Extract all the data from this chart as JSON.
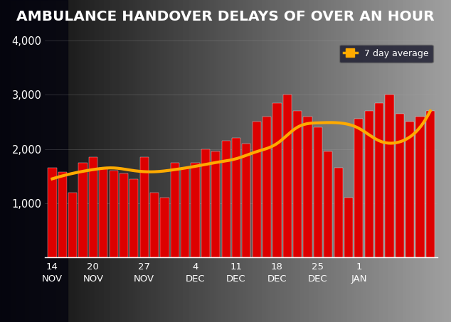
{
  "title": "AMBULANCE HANDOVER DELAYS OF OVER AN HOUR",
  "title_bg_color": "#cc0000",
  "title_text_color": "#ffffff",
  "bar_color": "#dd0000",
  "line_color": "#ffaa00",
  "line_label": "7 day average",
  "ylim": [
    0,
    4000
  ],
  "yticks": [
    1000,
    2000,
    3000,
    4000
  ],
  "xlabel_groups": [
    "14\nNOV",
    "20\nNOV",
    "27\nNOV",
    "4\nDEC",
    "11\nDEC",
    "18\nDEC",
    "25\nDEC",
    "1\nJAN"
  ],
  "bar_values": [
    1650,
    1580,
    1200,
    1750,
    1850,
    1650,
    1600,
    1550,
    1450,
    1850,
    1200,
    1100,
    1750,
    1650,
    1750,
    2000,
    1950,
    2150,
    2200,
    2100,
    2500,
    2600,
    2850,
    3000,
    2700,
    2600,
    2400,
    1950,
    1650,
    1100,
    2550,
    2700,
    2850,
    3000,
    2650,
    2500,
    2600,
    2700
  ],
  "moving_avg_x": [
    0,
    2,
    4,
    6,
    8,
    10,
    12,
    14,
    16,
    18,
    20,
    22,
    24,
    26,
    28,
    30,
    32,
    34,
    36,
    37
  ],
  "moving_avg_y": [
    1450,
    1550,
    1620,
    1650,
    1600,
    1580,
    1620,
    1680,
    1750,
    1820,
    1950,
    2100,
    2400,
    2480,
    2480,
    2380,
    2150,
    2130,
    2400,
    2700
  ],
  "grid_color": "#aaaaaa",
  "tick_color": "#ffffff",
  "axis_color": "#ffffff",
  "week_positions": [
    0,
    4,
    9,
    14,
    18,
    22,
    26,
    30
  ]
}
